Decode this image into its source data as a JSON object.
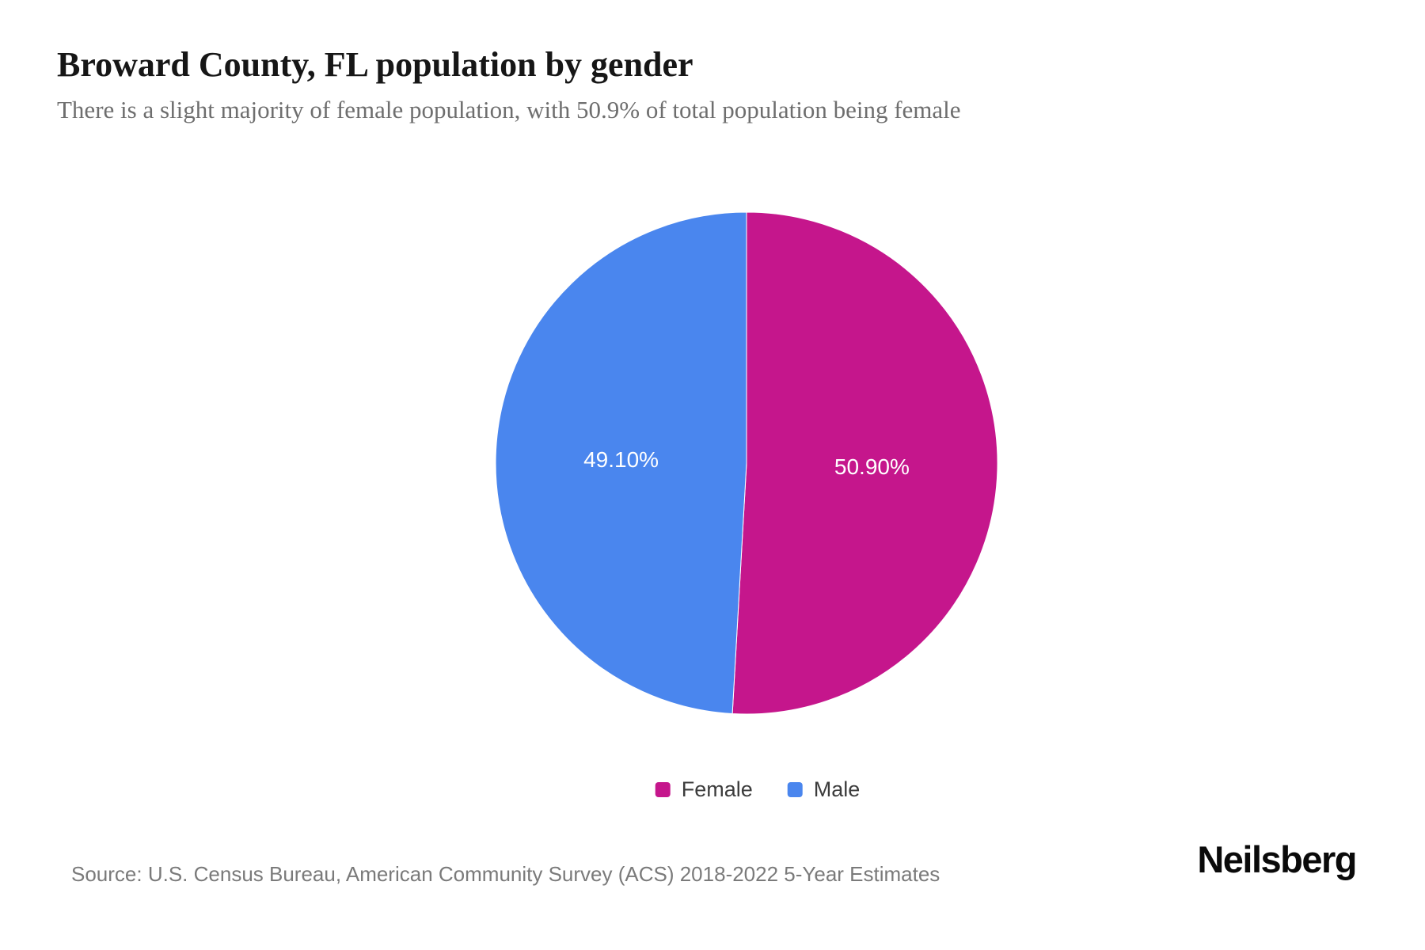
{
  "page": {
    "title": "Broward County, FL population by gender",
    "subtitle": "There is a slight majority of female population, with 50.9% of total population being female",
    "source": "Source: U.S. Census Bureau, American Community Survey (ACS) 2018-2022 5-Year Estimates",
    "brand": "Neilsberg"
  },
  "chart_data": {
    "type": "pie",
    "title": "Broward County, FL population by gender",
    "subtitle": "There is a slight majority of female population, with 50.9% of total population being female",
    "series": [
      {
        "name": "Female",
        "value": 50.9,
        "label": "50.90%",
        "color": "#c5168c"
      },
      {
        "name": "Male",
        "value": 49.1,
        "label": "49.10%",
        "color": "#4a86ee"
      }
    ],
    "start_angle_deg": 0,
    "direction": "clockwise",
    "data_labels": "inside",
    "data_label_color": "#ffffff",
    "legend_position": "bottom",
    "slice_border_color": "#ffffff"
  }
}
